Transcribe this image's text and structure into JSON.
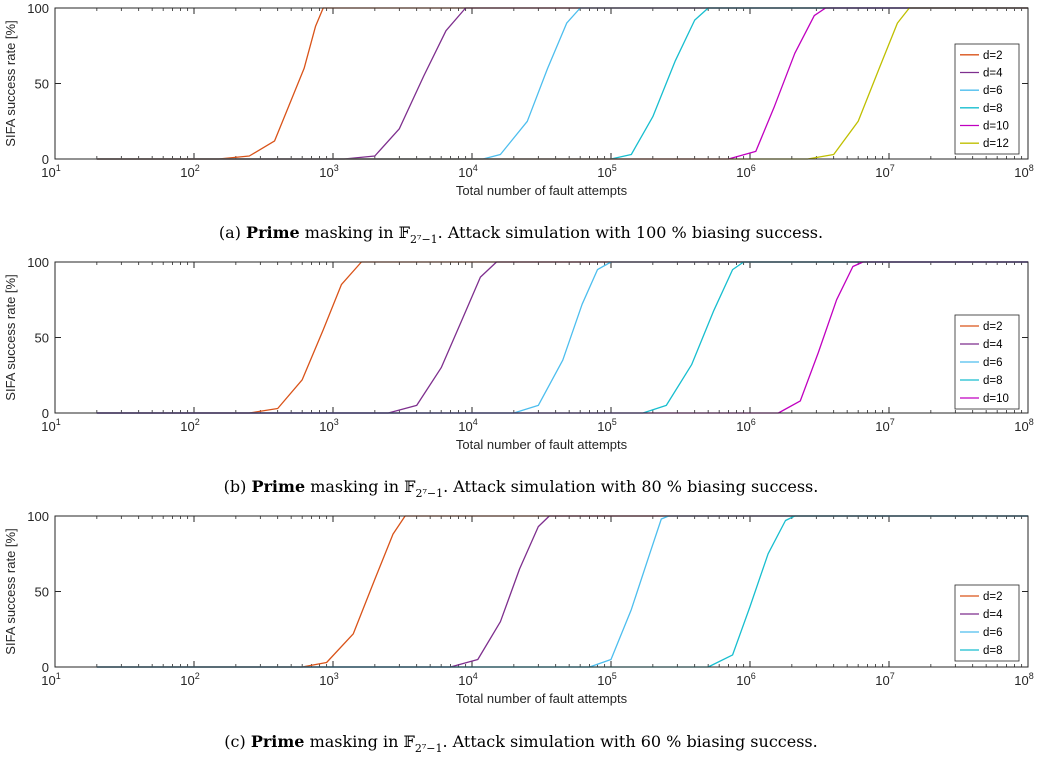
{
  "chart_data": [
    {
      "type": "line",
      "x_scale": "log",
      "xlim": [
        10,
        100000000
      ],
      "ylim": [
        0,
        100
      ],
      "xlabel": "Total number of fault attempts",
      "ylabel": "SIFA success rate [%]",
      "x_ticks": [
        "1",
        "2",
        "3",
        "4",
        "5",
        "6",
        "7",
        "8"
      ],
      "y_ticks": [
        "0",
        "50",
        "100"
      ],
      "legend_position": "right",
      "caption": {
        "label": "(a)",
        "bold": "Prime",
        "text1": "masking in",
        "field": "𝔽",
        "sub": "2⁷−1",
        "text2": ". Attack simulation with 100 % biasing success."
      },
      "series": [
        {
          "name": "d=2",
          "color": "#d95319",
          "points": [
            [
              20,
              0
            ],
            [
              150,
              0
            ],
            [
              250,
              2
            ],
            [
              380,
              12
            ],
            [
              480,
              35
            ],
            [
              620,
              60
            ],
            [
              750,
              88
            ],
            [
              850,
              100
            ],
            [
              100000000,
              100
            ]
          ]
        },
        {
          "name": "d=4",
          "color": "#7e2f8e",
          "points": [
            [
              20,
              0
            ],
            [
              1200,
              0
            ],
            [
              2000,
              2
            ],
            [
              3000,
              20
            ],
            [
              4500,
              55
            ],
            [
              6500,
              85
            ],
            [
              9000,
              100
            ],
            [
              100000000,
              100
            ]
          ]
        },
        {
          "name": "d=6",
          "color": "#4dbeee",
          "points": [
            [
              20,
              0
            ],
            [
              12000,
              0
            ],
            [
              16000,
              3
            ],
            [
              25000,
              25
            ],
            [
              35000,
              60
            ],
            [
              48000,
              90
            ],
            [
              60000,
              100
            ],
            [
              100000000,
              100
            ]
          ]
        },
        {
          "name": "d=8",
          "color": "#17becf",
          "points": [
            [
              20,
              0
            ],
            [
              100000,
              0
            ],
            [
              140000,
              3
            ],
            [
              200000,
              28
            ],
            [
              290000,
              65
            ],
            [
              400000,
              92
            ],
            [
              500000,
              100
            ],
            [
              100000000,
              100
            ]
          ]
        },
        {
          "name": "d=10",
          "color": "#c000c0",
          "points": [
            [
              20,
              0
            ],
            [
              700000,
              0
            ],
            [
              1100000,
              5
            ],
            [
              1500000,
              35
            ],
            [
              2100000,
              70
            ],
            [
              2900000,
              95
            ],
            [
              3500000,
              100
            ],
            [
              100000000,
              100
            ]
          ]
        },
        {
          "name": "d=12",
          "color": "#bfbf00",
          "points": [
            [
              20,
              0
            ],
            [
              2600000,
              0
            ],
            [
              4000000,
              3
            ],
            [
              6000000,
              25
            ],
            [
              8500000,
              60
            ],
            [
              11500000,
              90
            ],
            [
              14000000,
              100
            ],
            [
              100000000,
              100
            ]
          ]
        }
      ]
    },
    {
      "type": "line",
      "x_scale": "log",
      "xlim": [
        10,
        100000000
      ],
      "ylim": [
        0,
        100
      ],
      "xlabel": "Total number of fault attempts",
      "ylabel": "SIFA success rate [%]",
      "x_ticks": [
        "1",
        "2",
        "3",
        "4",
        "5",
        "6",
        "7",
        "8"
      ],
      "y_ticks": [
        "0",
        "50",
        "100"
      ],
      "legend_position": "right",
      "caption": {
        "label": "(b)",
        "bold": "Prime",
        "text1": "masking in",
        "field": "𝔽",
        "sub": "2⁷−1",
        "text2": ". Attack simulation with 80 % biasing success."
      },
      "series": [
        {
          "name": "d=2",
          "color": "#d95319",
          "points": [
            [
              20,
              0
            ],
            [
              250,
              0
            ],
            [
              400,
              3
            ],
            [
              600,
              22
            ],
            [
              850,
              55
            ],
            [
              1150,
              85
            ],
            [
              1600,
              100
            ],
            [
              100000000,
              100
            ]
          ]
        },
        {
          "name": "d=4",
          "color": "#7e2f8e",
          "points": [
            [
              20,
              0
            ],
            [
              2500,
              0
            ],
            [
              4000,
              5
            ],
            [
              6000,
              30
            ],
            [
              8500,
              62
            ],
            [
              11500,
              90
            ],
            [
              15000,
              100
            ],
            [
              100000000,
              100
            ]
          ]
        },
        {
          "name": "d=6",
          "color": "#4dbeee",
          "points": [
            [
              20,
              0
            ],
            [
              20000,
              0
            ],
            [
              30000,
              5
            ],
            [
              45000,
              35
            ],
            [
              62000,
              72
            ],
            [
              80000,
              95
            ],
            [
              100000,
              100
            ],
            [
              100000000,
              100
            ]
          ]
        },
        {
          "name": "d=8",
          "color": "#17becf",
          "points": [
            [
              20,
              0
            ],
            [
              170000,
              0
            ],
            [
              250000,
              5
            ],
            [
              380000,
              32
            ],
            [
              550000,
              68
            ],
            [
              750000,
              95
            ],
            [
              900000,
              100
            ],
            [
              100000000,
              100
            ]
          ]
        },
        {
          "name": "d=10",
          "color": "#c000c0",
          "points": [
            [
              20,
              0
            ],
            [
              1600000,
              0
            ],
            [
              2300000,
              8
            ],
            [
              3100000,
              40
            ],
            [
              4200000,
              75
            ],
            [
              5500000,
              97
            ],
            [
              6500000,
              100
            ],
            [
              100000000,
              100
            ]
          ]
        }
      ]
    },
    {
      "type": "line",
      "x_scale": "log",
      "xlim": [
        10,
        100000000
      ],
      "ylim": [
        0,
        100
      ],
      "xlabel": "Total number of fault attempts",
      "ylabel": "SIFA success rate [%]",
      "x_ticks": [
        "1",
        "2",
        "3",
        "4",
        "5",
        "6",
        "7",
        "8"
      ],
      "y_ticks": [
        "0",
        "50",
        "100"
      ],
      "legend_position": "right",
      "caption": {
        "label": "(c)",
        "bold": "Prime",
        "text1": "masking in",
        "field": "𝔽",
        "sub": "2⁷−1",
        "text2": ". Attack simulation with 60 % biasing success."
      },
      "series": [
        {
          "name": "d=2",
          "color": "#d95319",
          "points": [
            [
              20,
              0
            ],
            [
              600,
              0
            ],
            [
              900,
              3
            ],
            [
              1400,
              22
            ],
            [
              2000,
              58
            ],
            [
              2700,
              88
            ],
            [
              3300,
              100
            ],
            [
              100000000,
              100
            ]
          ]
        },
        {
          "name": "d=4",
          "color": "#7e2f8e",
          "points": [
            [
              20,
              0
            ],
            [
              7000,
              0
            ],
            [
              11000,
              5
            ],
            [
              16000,
              30
            ],
            [
              22000,
              65
            ],
            [
              30000,
              93
            ],
            [
              36000,
              100
            ],
            [
              100000000,
              100
            ]
          ]
        },
        {
          "name": "d=6",
          "color": "#4dbeee",
          "points": [
            [
              20,
              0
            ],
            [
              70000,
              0
            ],
            [
              100000,
              5
            ],
            [
              140000,
              38
            ],
            [
              190000,
              75
            ],
            [
              230000,
              98
            ],
            [
              260000,
              100
            ],
            [
              100000000,
              100
            ]
          ]
        },
        {
          "name": "d=8",
          "color": "#17becf",
          "points": [
            [
              20,
              0
            ],
            [
              500000,
              0
            ],
            [
              750000,
              8
            ],
            [
              1000000,
              40
            ],
            [
              1350000,
              75
            ],
            [
              1800000,
              97
            ],
            [
              2100000,
              100
            ],
            [
              100000000,
              100
            ]
          ]
        }
      ]
    }
  ]
}
